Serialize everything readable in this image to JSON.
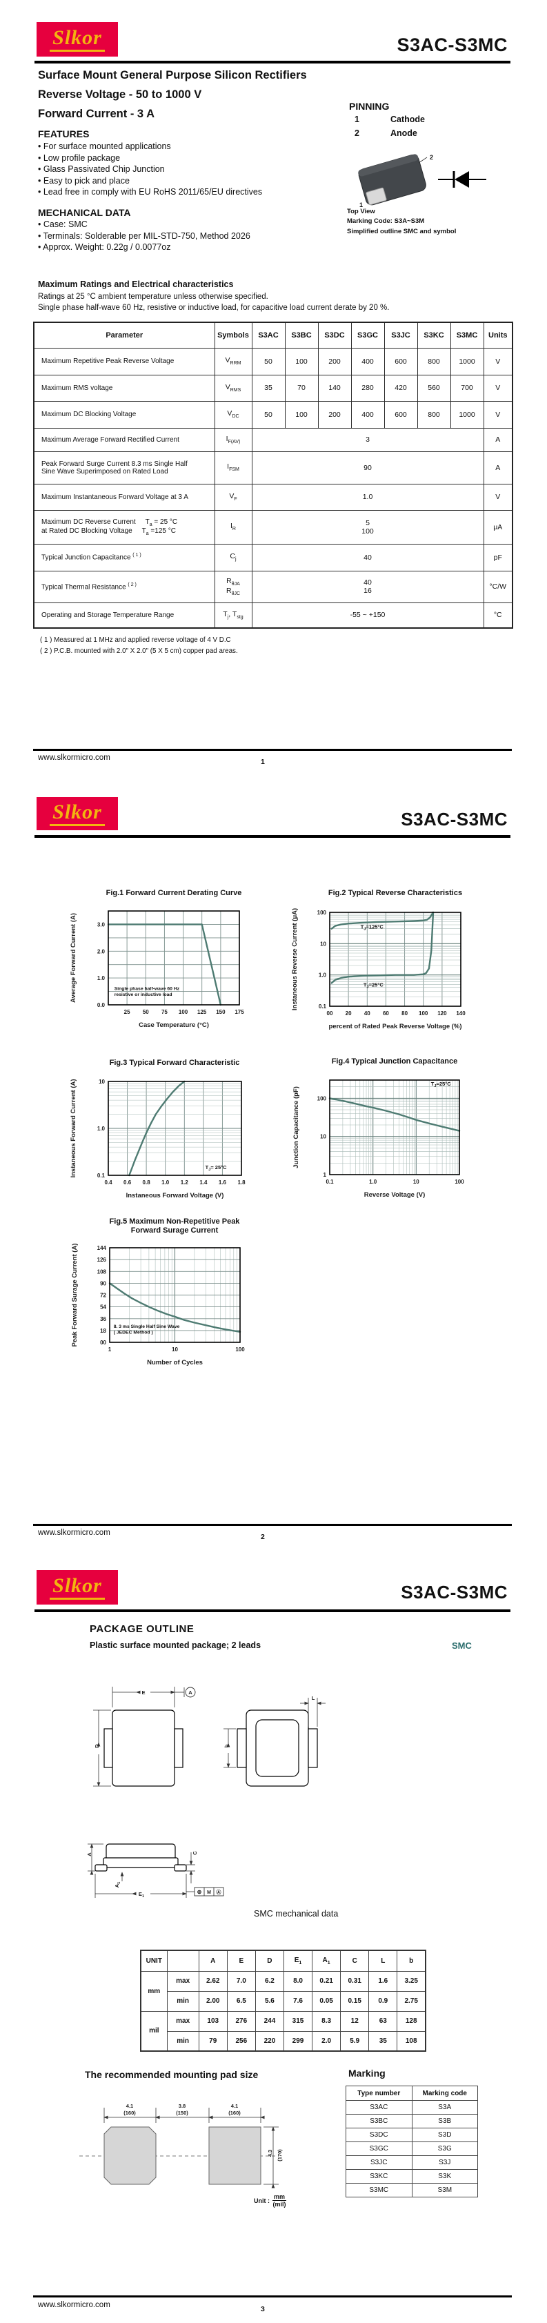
{
  "brand": {
    "logo_text": "Slkor",
    "logo_bg": "#e6003e",
    "logo_fg": "#f2b50f",
    "part_title": "S3AC-S3MC",
    "website": "www.slkormicro.com"
  },
  "page1": {
    "page_number": "1",
    "subtitle_lines": [
      "Surface Mount General Purpose Silicon Rectifiers",
      "Reverse Voltage - 50 to 1000 V",
      "Forward Current - 3 A"
    ],
    "pinning": {
      "heading": "PINNING",
      "pins": [
        {
          "num": "1",
          "name": "Cathode"
        },
        {
          "num": "2",
          "name": "Anode"
        }
      ]
    },
    "package_caption": [
      "Top View",
      "Marking Code:  S3A~S3M",
      "Simplified outline SMC and symbol"
    ],
    "features": {
      "heading": "FEATURES",
      "items": [
        "For surface mounted applications",
        "Low profile package",
        "Glass Passivated Chip Junction",
        "Easy to pick and place",
        "Lead free in comply with EU RoHS 2011/65/EU directives"
      ]
    },
    "mechanical": {
      "heading": "MECHANICAL DATA",
      "items": [
        "Case: SMC",
        "Terminals: Solderable per MIL-STD-750, Method 2026",
        "Approx. Weight:  0.22g / 0.0077oz"
      ]
    },
    "ratings": {
      "heading": "Maximum Ratings and Electrical characteristics",
      "desc": [
        "Ratings at 25 °C ambient temperature unless otherwise specified.",
        "Single phase half-wave 60 Hz, resistive or inductive load, for capacitive load current derate by 20 %."
      ],
      "columns": [
        "Parameter",
        "Symbols",
        "S3AC",
        "S3BC",
        "S3DC",
        "S3GC",
        "S3JC",
        "S3KC",
        "S3MC",
        "Units"
      ],
      "rows": [
        {
          "param": [
            "Maximum Repetitive Peak Reverse Voltage"
          ],
          "symbol": [
            "V_{RRM}"
          ],
          "values": [
            "50",
            "100",
            "200",
            "400",
            "600",
            "800",
            "1000"
          ],
          "unit": "V"
        },
        {
          "param": [
            "Maximum RMS voltage"
          ],
          "symbol": [
            "V_{RMS}"
          ],
          "values": [
            "35",
            "70",
            "140",
            "280",
            "420",
            "560",
            "700"
          ],
          "unit": "V"
        },
        {
          "param": [
            "Maximum DC Blocking Voltage"
          ],
          "symbol": [
            "V_{DC}"
          ],
          "values": [
            "50",
            "100",
            "200",
            "400",
            "600",
            "800",
            "1000"
          ],
          "unit": "V"
        },
        {
          "param": [
            "Maximum Average Forward Rectified Current"
          ],
          "symbol": [
            "I_{F(AV)}"
          ],
          "span": [
            "3"
          ],
          "unit": "A"
        },
        {
          "param": [
            "Peak Forward Surge Current 8.3 ms Single Half",
            "Sine Wave Superimposed on Rated Load"
          ],
          "symbol": [
            "I_{FSM}"
          ],
          "span": [
            "90"
          ],
          "unit": "A"
        },
        {
          "param": [
            "Maximum Instantaneous Forward Voltage at 3 A"
          ],
          "symbol": [
            "V_{F}"
          ],
          "span": [
            "1.0"
          ],
          "unit": "V"
        },
        {
          "param": [
            "Maximum DC Reverse Current     T_{a} = 25 °C",
            "at Rated DC Blocking Voltage     T_{a} =125 °C"
          ],
          "symbol": [
            "I_{R}"
          ],
          "span": [
            "5",
            "100"
          ],
          "unit": "μA"
        },
        {
          "param": [
            "Typical Junction Capacitance ^{( 1 )}"
          ],
          "symbol": [
            "C_{j}"
          ],
          "span": [
            "40"
          ],
          "unit": "pF"
        },
        {
          "param": [
            "Typical Thermal Resistance ^{( 2 )}"
          ],
          "symbol": [
            "R_{θJA}",
            "R_{θJC}"
          ],
          "span": [
            "40",
            "16"
          ],
          "unit": "°C/W"
        },
        {
          "param": [
            "Operating and Storage Temperature Range"
          ],
          "symbol": [
            "T_{j}, T_{stg}"
          ],
          "span": [
            "-55 ~ +150"
          ],
          "unit": "°C"
        }
      ],
      "notes": [
        "( 1 ) Measured at 1 MHz and applied reverse voltage of 4 V D.C",
        "( 2 ) P.C.B. mounted with 2.0\" X 2.0\" (5 X 5 cm) copper pad areas."
      ]
    }
  },
  "page2": {
    "page_number": "2"
  },
  "chart_data": [
    {
      "id": "fig1",
      "type": "line",
      "title": "Fig.1  Forward Current Derating Curve",
      "xlabel": "Case Temperature (°C)",
      "ylabel": "Average Forward Current (A)",
      "xscale": "linear",
      "xlim": [
        0,
        175
      ],
      "xstep": 25,
      "xticks": [
        25,
        50,
        75,
        100,
        125,
        150,
        175
      ],
      "xtick_labels": [
        "25",
        "50",
        "75",
        "100",
        "125",
        "150",
        "175"
      ],
      "yscale": "linear",
      "ylim": [
        0,
        3.5
      ],
      "ystep": 0.5,
      "yticks": [
        0,
        1,
        2,
        3
      ],
      "ytick_labels": [
        "0.0",
        "1.0",
        "2.0",
        "3.0"
      ],
      "grid": true,
      "line_color": "#4e7b72",
      "series": [
        {
          "name": "derating",
          "x": [
            0,
            125,
            150
          ],
          "y": [
            3,
            3,
            0
          ]
        }
      ],
      "note": {
        "x": 8,
        "y": 0.55,
        "text": "Single phase half-wave 60 Hz\nresistive or inductive load"
      }
    },
    {
      "id": "fig2",
      "type": "line",
      "title": "Fig.2  Typical Reverse Characteristics",
      "xlabel": "percent of Rated  Peak Reverse Voltage (%)",
      "ylabel": "Instaneous  Reverse  Current  (μA)",
      "xscale": "linear",
      "xlim": [
        0,
        140
      ],
      "xstep": 20,
      "xticks": [
        0,
        20,
        40,
        60,
        80,
        100,
        120,
        140
      ],
      "xtick_labels": [
        "00",
        "20",
        "40",
        "60",
        "80",
        "100",
        "120",
        "140"
      ],
      "yscale": "log",
      "ylim": [
        0.1,
        100
      ],
      "yticks": [
        0.1,
        1,
        10,
        100
      ],
      "ytick_labels": [
        "0.1",
        "1.0",
        "10",
        "100"
      ],
      "grid": true,
      "line_color": "#4e7b72",
      "series": [
        {
          "name": "TJ=125C",
          "x": [
            2,
            6,
            12,
            20,
            35,
            50,
            70,
            90,
            100,
            104,
            107,
            109,
            110.5
          ],
          "y": [
            30,
            37,
            41,
            44,
            47,
            49,
            51,
            53,
            55,
            58,
            68,
            85,
            100
          ]
        },
        {
          "name": "TJ=25C",
          "x": [
            2,
            6,
            12,
            20,
            35,
            50,
            70,
            90,
            100,
            103,
            106,
            108.5,
            110.5
          ],
          "y": [
            0.55,
            0.7,
            0.8,
            0.88,
            0.94,
            0.97,
            1.0,
            1.0,
            1.05,
            1.15,
            1.6,
            6,
            100
          ]
        }
      ],
      "labels": [
        {
          "text": "T_{J}=125°C",
          "x": 33,
          "y": 30
        },
        {
          "text": "T_{J}=25°C",
          "x": 36,
          "y": 0.42
        }
      ]
    },
    {
      "id": "fig3",
      "type": "line",
      "title": "Fig.3  Typical Forward Characteristic",
      "xlabel": "Instaneous Forward Voltage (V)",
      "ylabel": "Instaneous  Forward Current  (A)",
      "xscale": "linear",
      "xlim": [
        0.4,
        1.8
      ],
      "xstep": 0.2,
      "xticks": [
        0.4,
        0.6,
        0.8,
        1.0,
        1.2,
        1.4,
        1.6,
        1.8
      ],
      "xtick_labels": [
        "0.4",
        "0.6",
        "0.8",
        "1.0",
        "1.2",
        "1.4",
        "1.6",
        "1.8"
      ],
      "yscale": "log",
      "ylim": [
        0.1,
        10
      ],
      "yticks": [
        0.1,
        1,
        10
      ],
      "ytick_labels": [
        "0.1",
        "1.0",
        "10"
      ],
      "grid": true,
      "line_color": "#4e7b72",
      "series": [
        {
          "name": "VF",
          "x": [
            0.62,
            0.65,
            0.68,
            0.72,
            0.76,
            0.8,
            0.85,
            0.9,
            0.96,
            1.02,
            1.08,
            1.14,
            1.2
          ],
          "y": [
            0.1,
            0.145,
            0.21,
            0.33,
            0.52,
            0.8,
            1.3,
            2.0,
            3.0,
            4.3,
            6.0,
            8.0,
            10
          ]
        }
      ],
      "labels": [
        {
          "text": "T_{J}= 25°C",
          "x": 1.42,
          "y": 0.135
        }
      ]
    },
    {
      "id": "fig4",
      "type": "line",
      "title": "Fig.4  Typical Junction Capacitance",
      "xlabel": "Reverse  Voltage (V)",
      "ylabel": "Junction  Capacitance (pF)",
      "xscale": "log",
      "xlim": [
        0.1,
        100
      ],
      "xticks": [
        0.1,
        1,
        10,
        100
      ],
      "xtick_labels": [
        "0.1",
        "1.0",
        "10",
        "100"
      ],
      "yscale": "log",
      "ylim": [
        1,
        300
      ],
      "yticks": [
        1,
        10,
        100
      ],
      "ytick_labels": [
        "1",
        "10",
        "100"
      ],
      "grid": true,
      "line_color": "#4e7b72",
      "series": [
        {
          "name": "Cj",
          "x": [
            0.1,
            0.2,
            0.4,
            0.7,
            1,
            2,
            4,
            7,
            10,
            20,
            40,
            70,
            100
          ],
          "y": [
            100,
            86,
            72,
            62,
            57,
            47,
            38,
            31,
            27,
            22,
            18,
            15.5,
            14
          ]
        }
      ],
      "labels": [
        {
          "text": "T_{J}=25°C",
          "x": 22,
          "y": 215
        }
      ]
    },
    {
      "id": "fig5",
      "type": "line",
      "title": "Fig.5  Maximum Non-Repetitive Peak\nForward Surage Current",
      "xlabel": "Number of Cycles",
      "ylabel": "Peak  Forward Surage  Current (A)",
      "xscale": "log",
      "xlim": [
        1,
        100
      ],
      "xticks": [
        1,
        10,
        100
      ],
      "xtick_labels": [
        "1",
        "10",
        "100"
      ],
      "yscale": "linear",
      "ylim": [
        0,
        144
      ],
      "ystep": 18,
      "yticks": [
        0,
        18,
        36,
        54,
        72,
        90,
        108,
        126,
        144
      ],
      "ytick_labels": [
        "00",
        "18",
        "36",
        "54",
        "72",
        "90",
        "108",
        "126",
        "144"
      ],
      "grid": true,
      "line_color": "#4e7b72",
      "series": [
        {
          "name": "IFSM",
          "x": [
            1,
            1.3,
            1.7,
            2.2,
            3,
            4,
            5.5,
            7.5,
            10,
            14,
            20,
            30,
            45,
            65,
            100
          ],
          "y": [
            90,
            82,
            74,
            67,
            60,
            54,
            48,
            43,
            39,
            34,
            30,
            26,
            22,
            19,
            16
          ]
        }
      ],
      "note": {
        "x": 1.15,
        "y": 22,
        "text": "8. 3 ms Single Half Sine Wave\n( JEDEC Method )"
      }
    }
  ],
  "page3": {
    "page_number": "3",
    "heading": "PACKAGE  OUTLINE",
    "subheading": "Plastic surface mounted package; 2 leads",
    "package_name": "SMC",
    "package_name_color": "#2d6e6e",
    "outline_labels": {
      "E": "E",
      "A": "A",
      "D": "D",
      "b": "b",
      "L": "L",
      "A1": "A_{1}",
      "E1": "E_{1}",
      "C": "C"
    },
    "mech_table": {
      "title": "SMC mechanical data",
      "unit_label": "UNIT",
      "dims": [
        "A",
        "E",
        "D",
        "E_{1}",
        "A_{1}",
        "C",
        "L",
        "b"
      ],
      "groups": [
        {
          "unit": "mm",
          "rows": [
            {
              "limit": "max",
              "values": [
                "2.62",
                "7.0",
                "6.2",
                "8.0",
                "0.21",
                "0.31",
                "1.6",
                "3.25"
              ]
            },
            {
              "limit": "min",
              "values": [
                "2.00",
                "6.5",
                "5.6",
                "7.6",
                "0.05",
                "0.15",
                "0.9",
                "2.75"
              ]
            }
          ]
        },
        {
          "unit": "mil",
          "rows": [
            {
              "limit": "max",
              "values": [
                "103",
                "276",
                "244",
                "315",
                "8.3",
                "12",
                "63",
                "128"
              ]
            },
            {
              "limit": "min",
              "values": [
                "79",
                "256",
                "220",
                "299",
                "2.0",
                "5.9",
                "35",
                "108"
              ]
            }
          ]
        }
      ]
    },
    "pad": {
      "heading": "The recommended mounting pad size",
      "dim_left": [
        "4.1",
        "(160)"
      ],
      "dim_mid": [
        "3.8",
        "(150)"
      ],
      "dim_right_pad": [
        "4.1",
        "(160)"
      ],
      "dim_height": [
        "4.3",
        "(170)"
      ],
      "unit_label": "Unit :",
      "unit_top": "mm",
      "unit_bottom": "(mil)"
    },
    "marking": {
      "heading": "Marking",
      "columns": [
        "Type number",
        "Marking code"
      ],
      "rows": [
        [
          "S3AC",
          "S3A"
        ],
        [
          "S3BC",
          "S3B"
        ],
        [
          "S3DC",
          "S3D"
        ],
        [
          "S3GC",
          "S3G"
        ],
        [
          "S3JC",
          "S3J"
        ],
        [
          "S3KC",
          "S3K"
        ],
        [
          "S3MC",
          "S3M"
        ]
      ]
    }
  }
}
